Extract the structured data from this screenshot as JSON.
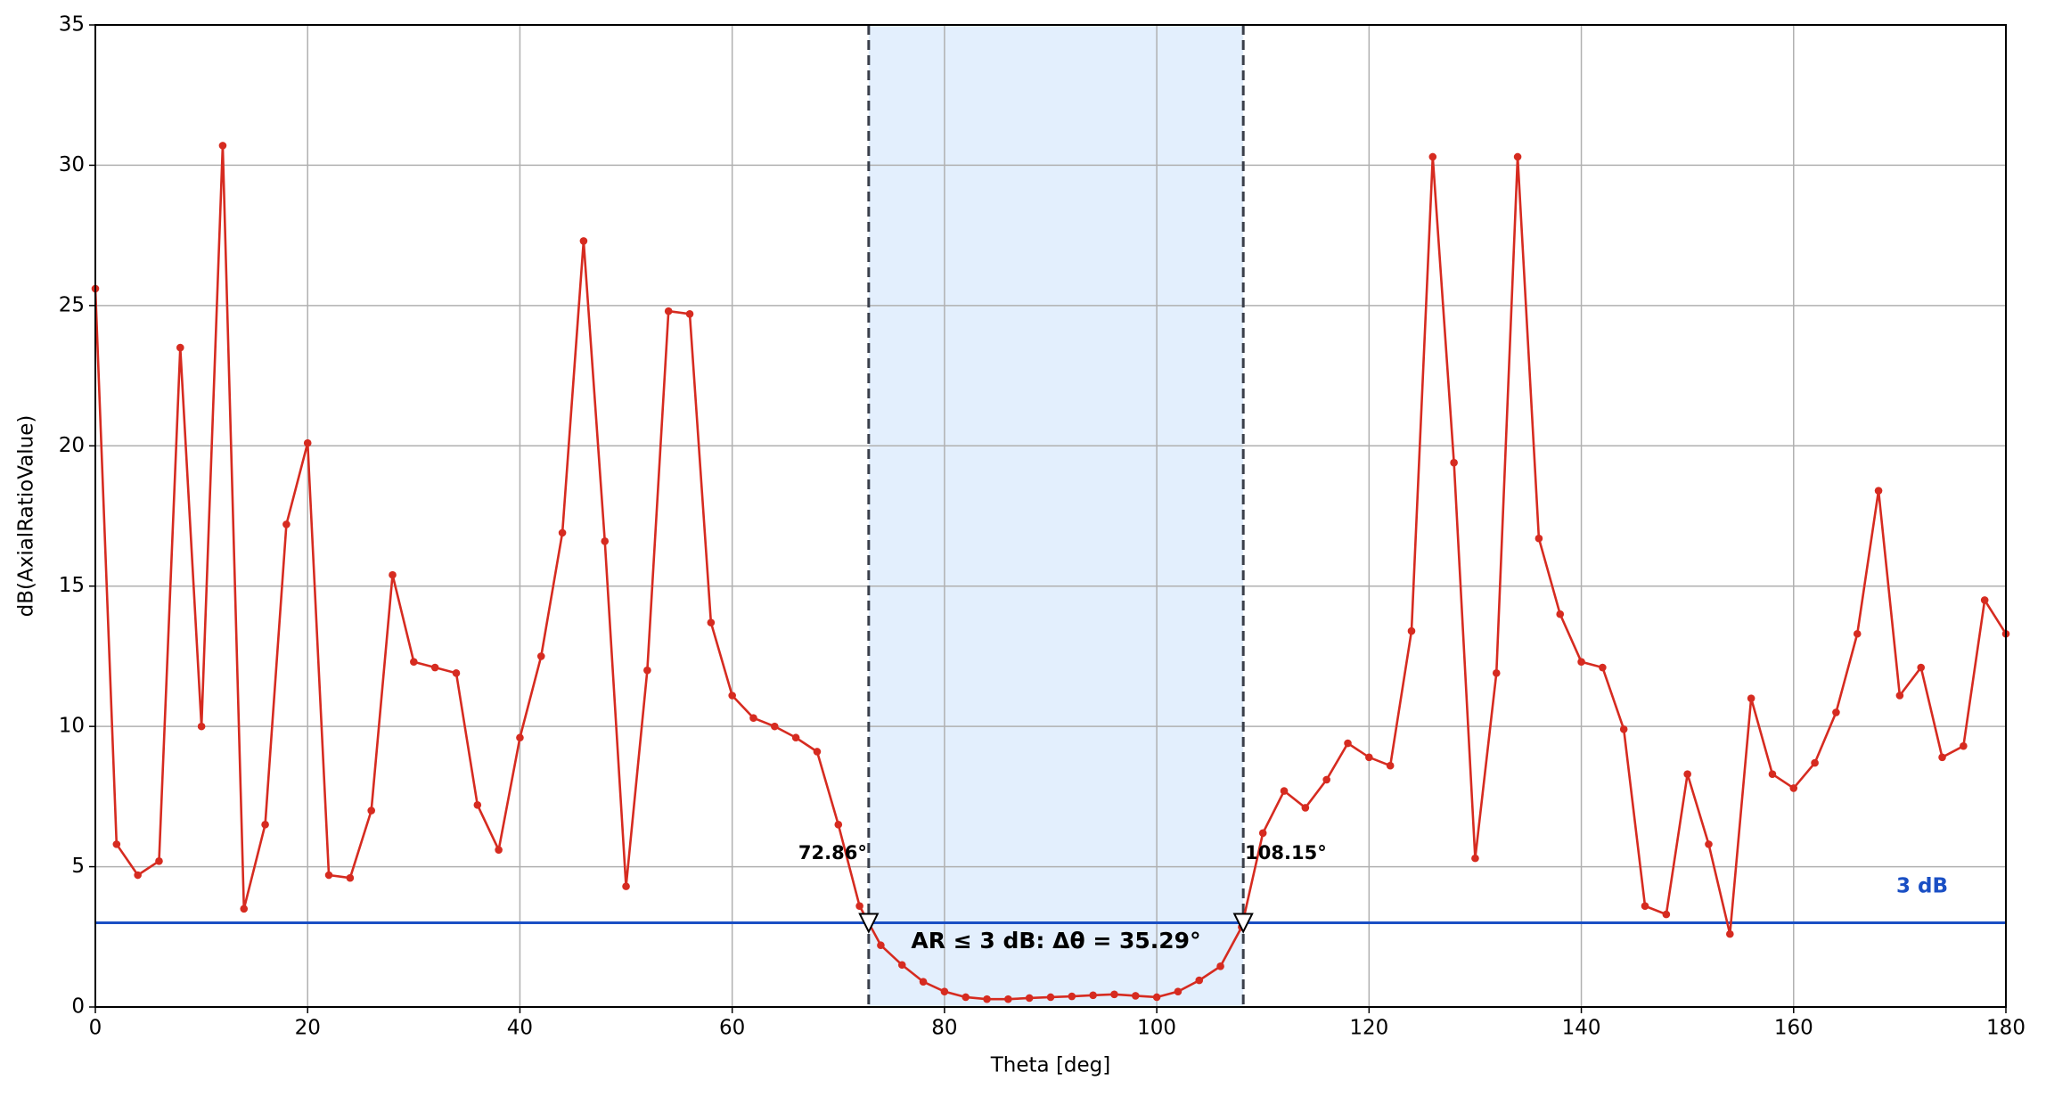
{
  "chart_data": {
    "type": "line",
    "xlabel": "Theta [deg]",
    "ylabel": "dB(AxialRatioValue)",
    "x": [
      0,
      2,
      4,
      6,
      8,
      10,
      12,
      14,
      16,
      18,
      20,
      22,
      24,
      26,
      28,
      30,
      32,
      34,
      36,
      38,
      40,
      42,
      44,
      46,
      48,
      50,
      52,
      54,
      56,
      58,
      60,
      62,
      64,
      66,
      68,
      70,
      72,
      74,
      76,
      78,
      80,
      82,
      84,
      86,
      88,
      90,
      92,
      94,
      96,
      98,
      100,
      102,
      104,
      106,
      108,
      110,
      112,
      114,
      116,
      118,
      120,
      122,
      124,
      126,
      128,
      130,
      132,
      134,
      136,
      138,
      140,
      142,
      144,
      146,
      148,
      150,
      152,
      154,
      156,
      158,
      160,
      162,
      164,
      166,
      168,
      170,
      172,
      174,
      176,
      178,
      180
    ],
    "series": [
      {
        "color": "#d62b20",
        "values": [
          25.6,
          5.8,
          4.7,
          5.2,
          23.5,
          10.0,
          30.7,
          3.5,
          6.5,
          17.2,
          20.1,
          4.7,
          4.6,
          7.0,
          15.4,
          12.3,
          12.1,
          11.9,
          7.2,
          5.6,
          9.6,
          12.5,
          16.9,
          27.3,
          16.6,
          4.3,
          12.0,
          24.8,
          24.7,
          13.7,
          11.1,
          10.3,
          10.0,
          9.6,
          9.1,
          6.5,
          3.6,
          2.2,
          1.5,
          0.9,
          0.55,
          0.35,
          0.28,
          0.28,
          0.32,
          0.35,
          0.38,
          0.42,
          0.45,
          0.4,
          0.35,
          0.55,
          0.95,
          1.45,
          2.85,
          6.2,
          7.7,
          7.1,
          8.1,
          9.4,
          8.9,
          8.6,
          13.4,
          30.3,
          19.4,
          5.3,
          11.9,
          30.3,
          16.7,
          14.0,
          12.3,
          12.1,
          9.9,
          3.6,
          3.3,
          8.3,
          5.8,
          2.6,
          11.0,
          8.3,
          7.8,
          8.7,
          10.5,
          13.3,
          18.4,
          11.1,
          12.1,
          8.9,
          9.3,
          14.5,
          13.3
        ]
      }
    ],
    "threshold": {
      "value": 3,
      "label": "3 dB",
      "color": "#1a4fc4"
    },
    "crossings": [
      {
        "value": 72.86,
        "label": "72.86°"
      },
      {
        "value": 108.15,
        "label": "108.15°"
      }
    ],
    "span_color": "#e3effd",
    "annotation": "AR ≤ 3 dB: Δθ = 35.29°",
    "xlim": [
      0,
      180
    ],
    "xticks": [
      0,
      20,
      40,
      60,
      80,
      100,
      120,
      140,
      160,
      180
    ],
    "ylim": [
      0,
      35
    ],
    "yticks": [
      0,
      5,
      10,
      15,
      20,
      25,
      30,
      35
    ],
    "grid": true
  }
}
